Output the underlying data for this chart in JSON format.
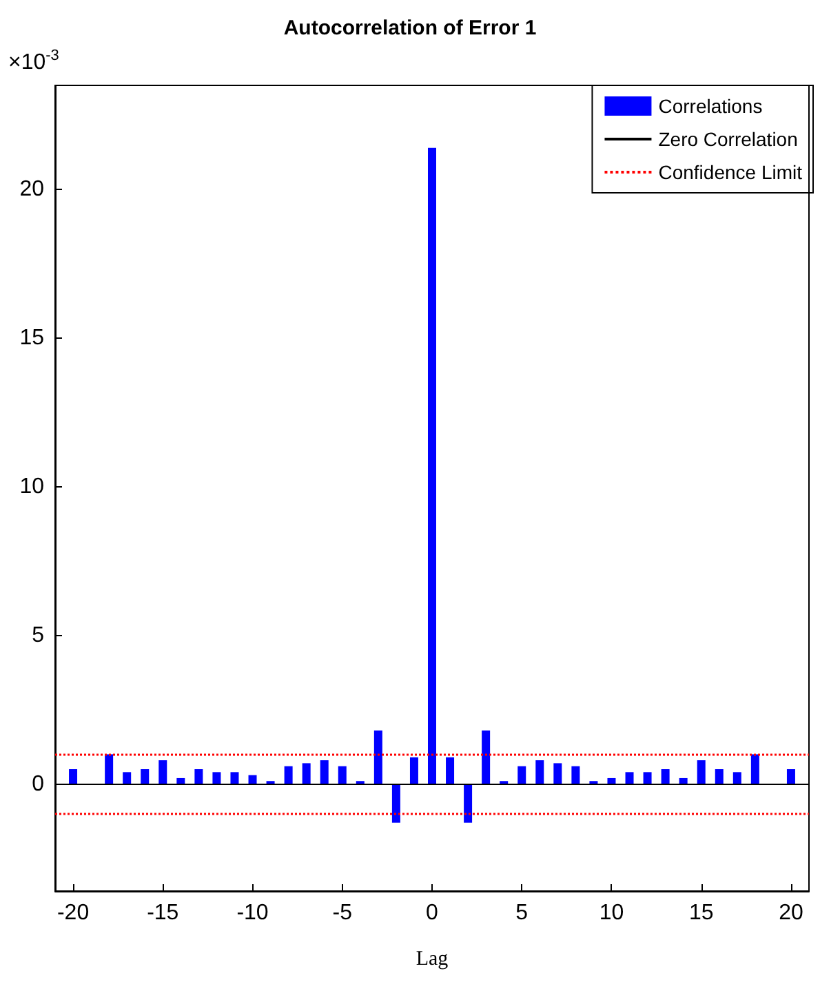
{
  "chart_data": {
    "type": "bar",
    "title": "Autocorrelation of Error 1",
    "xlabel": "Lag",
    "ylabel": "×10$^{-3}$",
    "x": [
      -20,
      -19,
      -18,
      -17,
      -16,
      -15,
      -14,
      -13,
      -12,
      -11,
      -10,
      -9,
      -8,
      -7,
      -6,
      -5,
      -4,
      -3,
      -2,
      -1,
      0,
      1,
      2,
      3,
      4,
      5,
      6,
      7,
      8,
      9,
      10,
      11,
      12,
      13,
      14,
      15,
      16,
      17,
      18,
      19,
      20
    ],
    "series": [
      {
        "name": "Correlations",
        "color": "#0000ff",
        "values": [
          0.5,
          0,
          1.0,
          0.4,
          0.5,
          0.8,
          0.2,
          0.5,
          0.4,
          0.4,
          0.3,
          0.1,
          0.6,
          0.7,
          0.8,
          0.6,
          0.1,
          1.8,
          -1.3,
          0.9,
          21.4,
          0.9,
          -1.3,
          1.8,
          0.1,
          0.6,
          0.8,
          0.7,
          0.6,
          0.1,
          0.2,
          0.4,
          0.4,
          0.5,
          0.2,
          0.8,
          0.5,
          0.4,
          1.0,
          0,
          0.5
        ]
      }
    ],
    "ref_lines": [
      {
        "axis": "y",
        "value": 0,
        "label": "Zero Correlation",
        "color": "#000000",
        "line_style": "solid"
      },
      {
        "axis": "y",
        "value": 1.0,
        "label": "Confidence Limit",
        "color": "#ff0000",
        "line_style": "dotted"
      },
      {
        "axis": "y",
        "value": -1.0,
        "color": "#ff0000",
        "line_style": "dotted"
      }
    ],
    "xlim": [
      -21,
      21
    ],
    "xticks": [
      -20,
      -15,
      -10,
      -5,
      0,
      5,
      10,
      15,
      20
    ],
    "ylim": [
      -3.6,
      23.5
    ],
    "yticks": [
      0,
      5,
      10,
      15,
      20
    ],
    "grid": false,
    "legend": "top right"
  }
}
